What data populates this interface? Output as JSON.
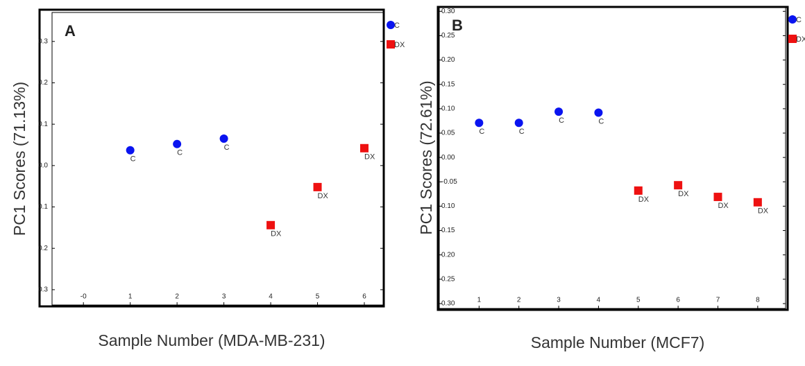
{
  "chart_data": [
    {
      "type": "scatter",
      "panel_label": "A",
      "ylabel": "PC1 Scores (71.13%)",
      "xlabel": "Sample Number (MDA-MB-231)",
      "xlim": [
        -0.67,
        6.4
      ],
      "ylim": [
        -0.337,
        0.37
      ],
      "xticks": [
        {
          "value": 0,
          "label": "-0"
        },
        1,
        2,
        3,
        4,
        5,
        6
      ],
      "yticks": [
        0.3,
        0.2,
        0.1,
        {
          "value": 0,
          "label": "0.0"
        },
        {
          "value": -0.1,
          "label": "0.1"
        },
        {
          "value": -0.2,
          "label": "0.2"
        },
        {
          "value": -0.3,
          "label": "0.3"
        }
      ],
      "series": [
        {
          "name": "C",
          "color": "#0a14f0",
          "marker": "circle",
          "x": [
            1,
            2,
            3
          ],
          "values": [
            0.037,
            0.052,
            0.065
          ],
          "point_labels": [
            "C",
            "C",
            "C"
          ]
        },
        {
          "name": "DX",
          "color": "#ee1111",
          "marker": "square",
          "x": [
            4,
            5,
            6
          ],
          "values": [
            -0.144,
            -0.052,
            0.042
          ],
          "point_labels": [
            "DX",
            "DX",
            "DX"
          ]
        }
      ]
    },
    {
      "type": "scatter",
      "panel_label": "B",
      "ylabel": "PC1 Scores (72.61%)",
      "xlabel": "Sample Number (MCF7)",
      "xlim": [
        0.0,
        8.7
      ],
      "ylim": [
        -0.31,
        0.309
      ],
      "xticks": [
        1,
        2,
        3,
        4,
        5,
        6,
        7,
        8
      ],
      "yticks": [
        {
          "value": 0.3,
          "label": "0.30"
        },
        0.25,
        {
          "value": 0.2,
          "label": "0.20"
        },
        0.15,
        {
          "value": 0.1,
          "label": "0.10"
        },
        0.05,
        {
          "value": 0,
          "label": "0.00"
        },
        -0.05,
        {
          "value": -0.1,
          "label": "0.10"
        },
        {
          "value": -0.15,
          "label": "0.15"
        },
        {
          "value": -0.2,
          "label": "0.20"
        },
        {
          "value": -0.25,
          "label": "0.25"
        },
        {
          "value": -0.3,
          "label": "0.30"
        }
      ],
      "series": [
        {
          "name": "C",
          "color": "#0a14f0",
          "marker": "circle",
          "x": [
            1,
            2,
            3,
            4
          ],
          "values": [
            0.071,
            0.071,
            0.094,
            0.092
          ],
          "point_labels": [
            "C",
            "C",
            "C",
            "C"
          ]
        },
        {
          "name": "DX",
          "color": "#ee1111",
          "marker": "square",
          "x": [
            5,
            6,
            7,
            8
          ],
          "values": [
            -0.068,
            -0.057,
            -0.081,
            -0.092
          ],
          "point_labels": [
            "DX",
            "DX",
            "DX",
            "DX"
          ]
        }
      ]
    }
  ]
}
